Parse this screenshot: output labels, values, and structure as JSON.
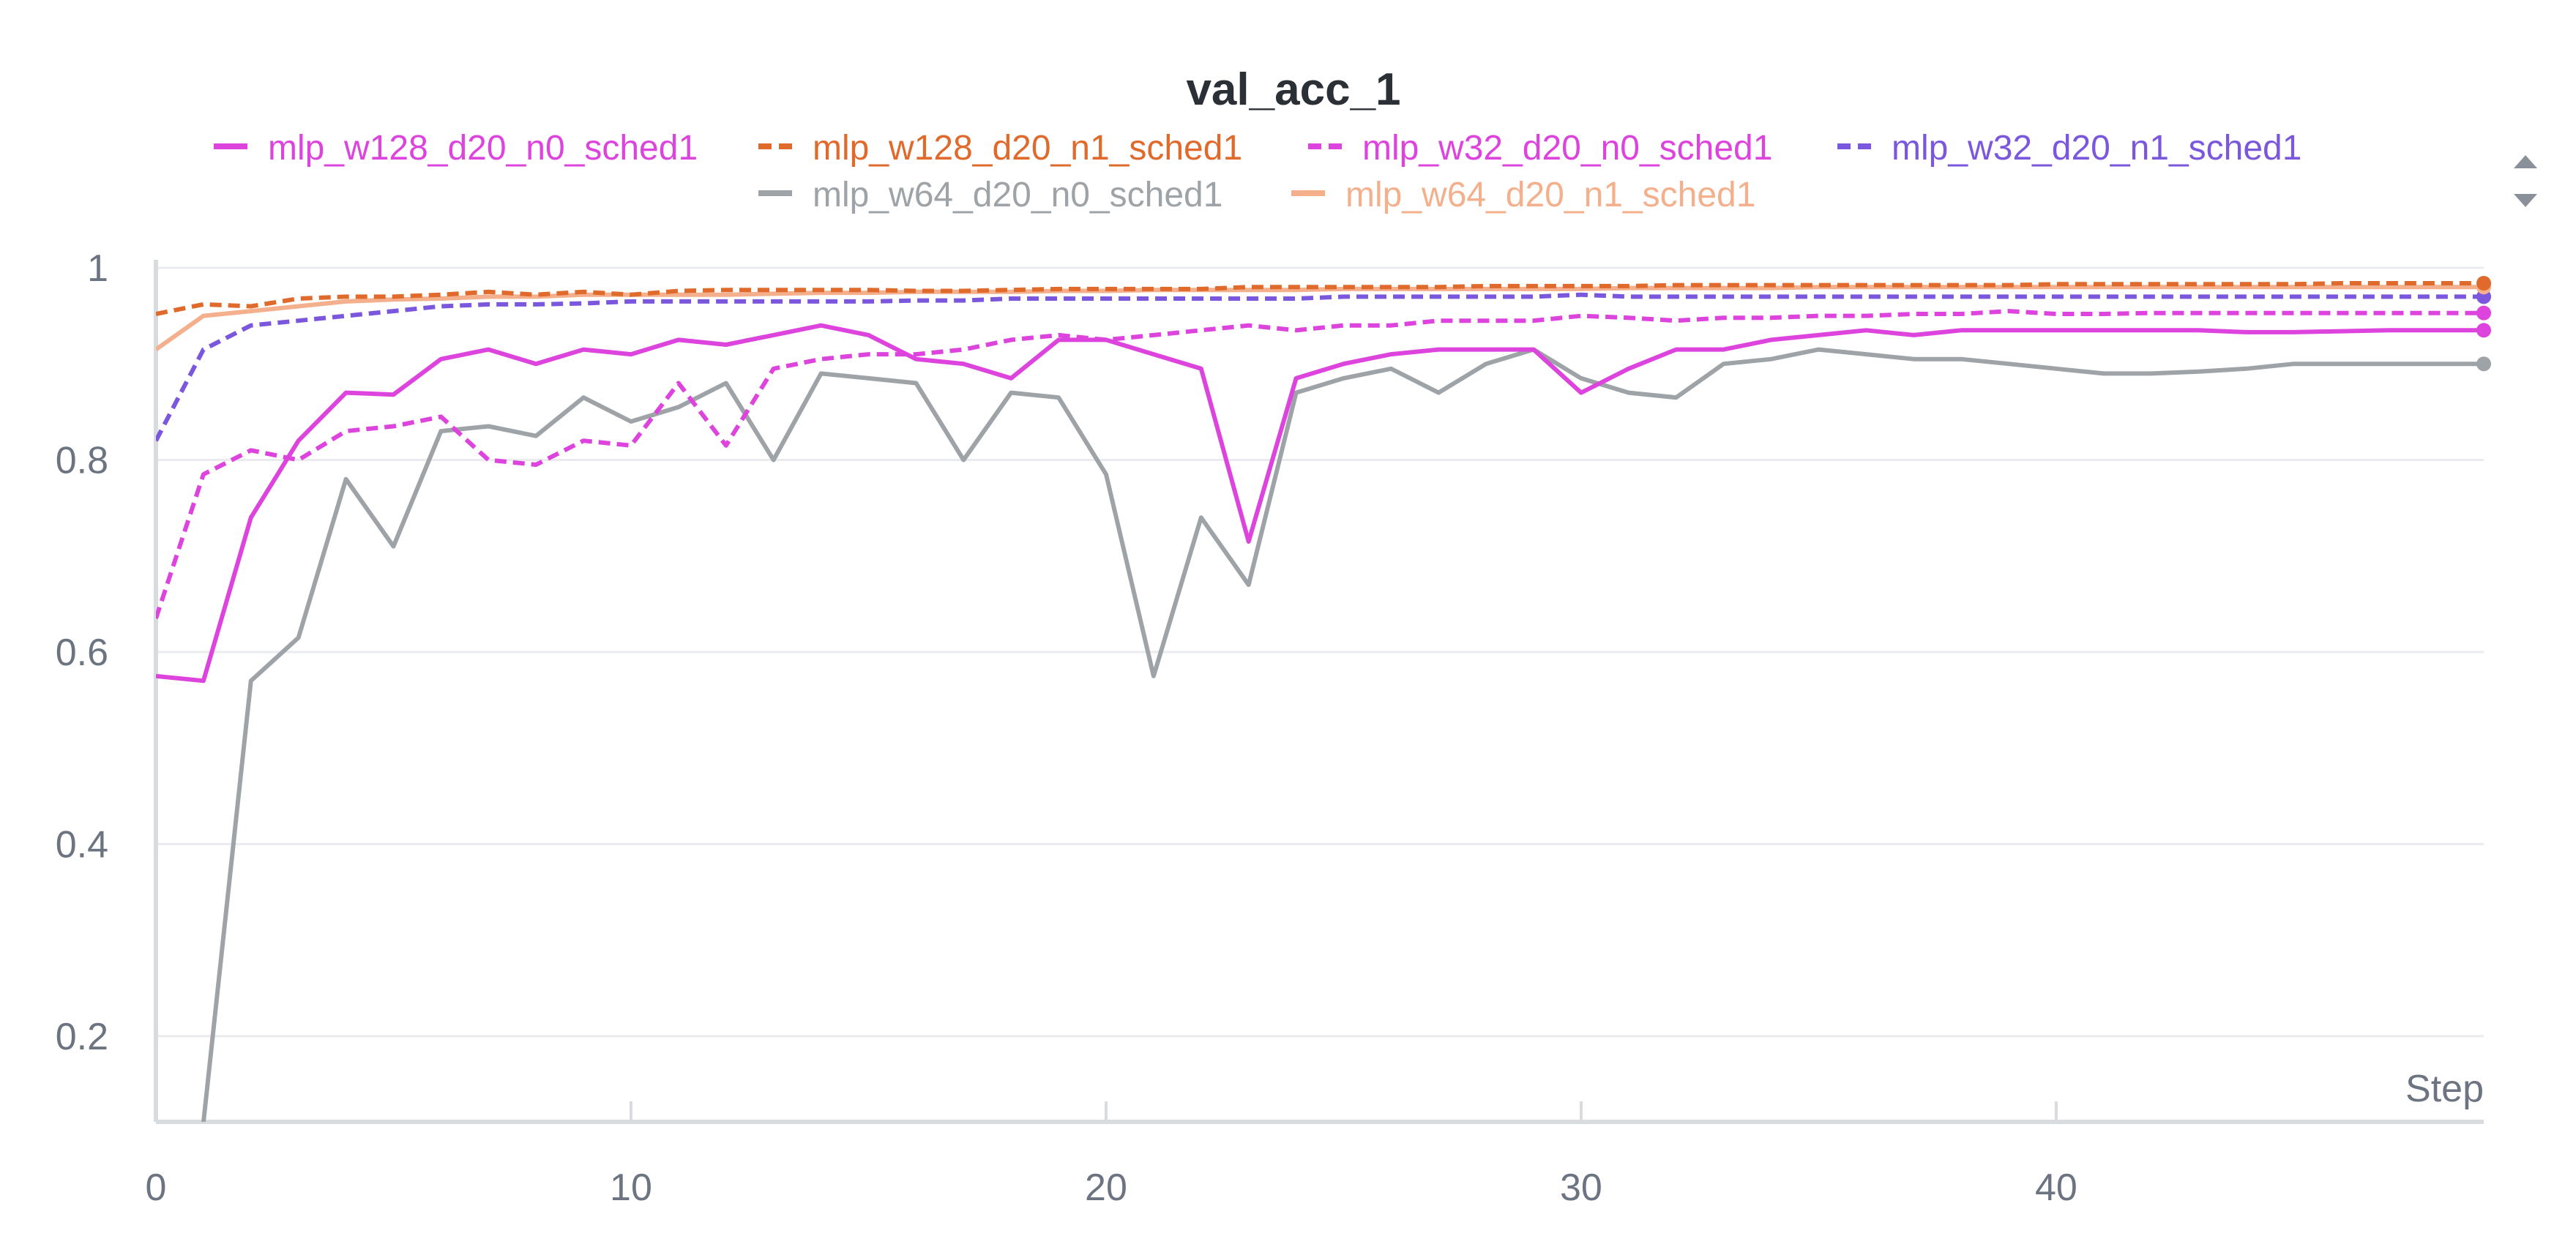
{
  "chart_data": {
    "type": "line",
    "title": "val_acc_1",
    "xlabel": "Step",
    "ylabel": "",
    "xlim": [
      0,
      49
    ],
    "ylim": [
      0.11,
      1.0
    ],
    "x_ticks": [
      0,
      10,
      20,
      30,
      40
    ],
    "y_ticks": [
      0.2,
      0.4,
      0.6,
      0.8,
      1
    ],
    "grid": true,
    "legend_position": "top",
    "x": [
      0,
      1,
      2,
      3,
      4,
      5,
      6,
      7,
      8,
      9,
      10,
      11,
      12,
      13,
      14,
      15,
      16,
      17,
      18,
      19,
      20,
      21,
      22,
      23,
      24,
      25,
      26,
      27,
      28,
      29,
      30,
      31,
      32,
      33,
      34,
      35,
      36,
      37,
      38,
      39,
      40,
      41,
      42,
      43,
      44,
      45,
      46,
      47,
      48,
      49
    ],
    "series": [
      {
        "name": "mlp_w64_d20_n0_sched1",
        "color": "#9ea3a8",
        "dash": "solid",
        "end_marker": true,
        "values": [
          null,
          0.11,
          0.57,
          0.615,
          0.78,
          0.71,
          0.83,
          0.835,
          0.825,
          0.865,
          0.84,
          0.855,
          0.88,
          0.8,
          0.89,
          0.885,
          0.88,
          0.8,
          0.87,
          0.865,
          0.785,
          0.575,
          0.74,
          0.67,
          0.87,
          0.885,
          0.895,
          0.87,
          0.9,
          0.915,
          0.885,
          0.87,
          0.865,
          0.9,
          0.905,
          0.915,
          0.91,
          0.905,
          0.905,
          0.9,
          0.895,
          0.89,
          0.89,
          0.892,
          0.895,
          0.9,
          0.9,
          0.9,
          0.9,
          0.9
        ]
      },
      {
        "name": "mlp_w128_d20_n0_sched1",
        "color": "#dd44dd",
        "dash": "solid",
        "end_marker": true,
        "values": [
          0.575,
          0.57,
          0.74,
          0.82,
          0.87,
          0.868,
          0.905,
          0.915,
          0.9,
          0.915,
          0.91,
          0.925,
          0.92,
          0.93,
          0.94,
          0.93,
          0.905,
          0.9,
          0.885,
          0.925,
          0.925,
          0.91,
          0.895,
          0.715,
          0.885,
          0.9,
          0.91,
          0.915,
          0.915,
          0.915,
          0.87,
          0.895,
          0.915,
          0.915,
          0.925,
          0.93,
          0.935,
          0.93,
          0.935,
          0.935,
          0.935,
          0.935,
          0.935,
          0.935,
          0.933,
          0.933,
          0.934,
          0.935,
          0.935,
          0.935
        ]
      },
      {
        "name": "mlp_w32_d20_n0_sched1",
        "color": "#dd44dd",
        "dash": "dashed",
        "end_marker": true,
        "values": [
          0.635,
          0.785,
          0.81,
          0.8,
          0.83,
          0.835,
          0.845,
          0.8,
          0.795,
          0.82,
          0.815,
          0.88,
          0.815,
          0.895,
          0.905,
          0.91,
          0.91,
          0.915,
          0.925,
          0.93,
          0.925,
          0.93,
          0.935,
          0.94,
          0.935,
          0.94,
          0.94,
          0.945,
          0.945,
          0.945,
          0.95,
          0.948,
          0.945,
          0.948,
          0.948,
          0.95,
          0.95,
          0.952,
          0.952,
          0.955,
          0.952,
          0.952,
          0.953,
          0.953,
          0.953,
          0.953,
          0.953,
          0.953,
          0.953,
          0.953
        ]
      },
      {
        "name": "mlp_w32_d20_n1_sched1",
        "color": "#7b57de",
        "dash": "dashed",
        "end_marker": true,
        "values": [
          0.82,
          0.915,
          0.94,
          0.945,
          0.95,
          0.955,
          0.96,
          0.962,
          0.962,
          0.963,
          0.965,
          0.965,
          0.965,
          0.965,
          0.965,
          0.965,
          0.966,
          0.966,
          0.968,
          0.968,
          0.968,
          0.968,
          0.968,
          0.968,
          0.968,
          0.97,
          0.97,
          0.97,
          0.97,
          0.97,
          0.972,
          0.97,
          0.97,
          0.97,
          0.97,
          0.97,
          0.97,
          0.97,
          0.97,
          0.97,
          0.97,
          0.97,
          0.97,
          0.97,
          0.97,
          0.97,
          0.97,
          0.97,
          0.97,
          0.97
        ]
      },
      {
        "name": "mlp_w64_d20_n1_sched1",
        "color": "#f4b08d",
        "dash": "solid",
        "end_marker": true,
        "values": [
          0.915,
          0.95,
          0.955,
          0.96,
          0.965,
          0.967,
          0.968,
          0.97,
          0.97,
          0.972,
          0.972,
          0.972,
          0.972,
          0.973,
          0.974,
          0.974,
          0.975,
          0.975,
          0.975,
          0.976,
          0.976,
          0.977,
          0.977,
          0.977,
          0.977,
          0.978,
          0.978,
          0.978,
          0.978,
          0.978,
          0.978,
          0.979,
          0.979,
          0.979,
          0.979,
          0.98,
          0.98,
          0.98,
          0.98,
          0.98,
          0.98,
          0.98,
          0.98,
          0.98,
          0.98,
          0.98,
          0.98,
          0.98,
          0.98,
          0.98
        ]
      },
      {
        "name": "mlp_w128_d20_n1_sched1",
        "color": "#e06a2c",
        "dash": "dashed",
        "end_marker": true,
        "values": [
          0.952,
          0.962,
          0.96,
          0.968,
          0.97,
          0.97,
          0.972,
          0.975,
          0.972,
          0.975,
          0.972,
          0.976,
          0.977,
          0.977,
          0.977,
          0.977,
          0.976,
          0.976,
          0.977,
          0.978,
          0.978,
          0.978,
          0.978,
          0.98,
          0.98,
          0.98,
          0.98,
          0.98,
          0.981,
          0.981,
          0.981,
          0.981,
          0.982,
          0.982,
          0.982,
          0.982,
          0.982,
          0.982,
          0.982,
          0.982,
          0.983,
          0.983,
          0.983,
          0.983,
          0.983,
          0.983,
          0.984,
          0.984,
          0.984,
          0.984
        ]
      }
    ],
    "legend": [
      {
        "name": "mlp_w128_d20_n0_sched1",
        "color": "#dd44dd",
        "dash": "solid"
      },
      {
        "name": "mlp_w128_d20_n1_sched1",
        "color": "#e06a2c",
        "dash": "dashed"
      },
      {
        "name": "mlp_w32_d20_n0_sched1",
        "color": "#dd44dd",
        "dash": "dashed"
      },
      {
        "name": "mlp_w32_d20_n1_sched1",
        "color": "#7b57de",
        "dash": "dashed"
      },
      {
        "name": "mlp_w64_d20_n0_sched1",
        "color": "#9ea3a8",
        "dash": "solid"
      },
      {
        "name": "mlp_w64_d20_n1_sched1",
        "color": "#f4b08d",
        "dash": "solid"
      }
    ],
    "colors": {
      "axis": "#d9dcdf",
      "grid": "#e9ebee",
      "tick_text": "#6b7480",
      "title": "#2b2f36"
    }
  }
}
